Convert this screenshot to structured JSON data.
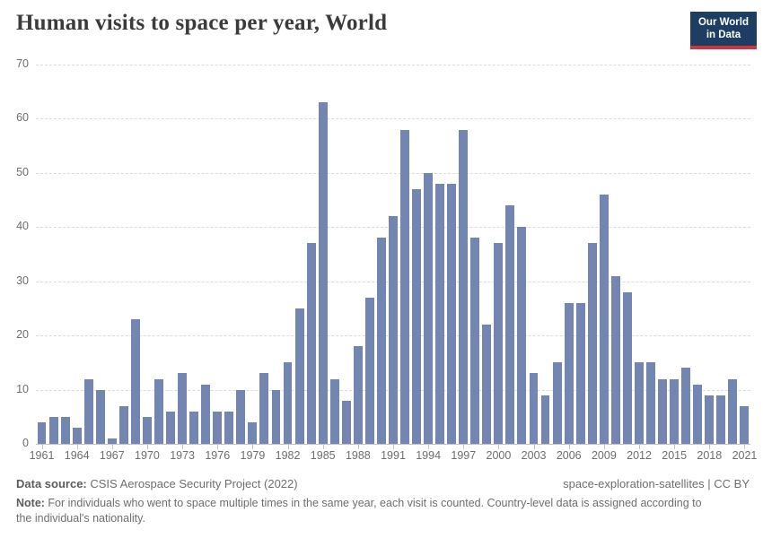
{
  "header": {
    "title": "Human visits to space per year, World",
    "logo": {
      "line1": "Our World",
      "line2": "in Data"
    }
  },
  "chart_data": {
    "type": "bar",
    "title": "Human visits to space per year, World",
    "xlabel": "",
    "ylabel": "",
    "ylim": [
      0,
      70
    ],
    "yticks": [
      0,
      10,
      20,
      30,
      40,
      50,
      60,
      70
    ],
    "grid": "horizontal-dashed",
    "legend": "none",
    "bar_color": "#7386b2",
    "x": [
      1961,
      1962,
      1963,
      1964,
      1965,
      1966,
      1967,
      1968,
      1969,
      1970,
      1971,
      1972,
      1973,
      1974,
      1975,
      1976,
      1977,
      1978,
      1979,
      1980,
      1981,
      1982,
      1983,
      1984,
      1985,
      1986,
      1987,
      1988,
      1989,
      1990,
      1991,
      1992,
      1993,
      1994,
      1995,
      1996,
      1997,
      1998,
      1999,
      2000,
      2001,
      2002,
      2003,
      2004,
      2005,
      2006,
      2007,
      2008,
      2009,
      2010,
      2011,
      2012,
      2013,
      2014,
      2015,
      2016,
      2017,
      2018,
      2019,
      2020,
      2021
    ],
    "values": [
      4,
      5,
      5,
      3,
      12,
      10,
      1,
      7,
      23,
      5,
      12,
      6,
      13,
      6,
      11,
      6,
      6,
      10,
      4,
      13,
      10,
      15,
      25,
      37,
      63,
      12,
      8,
      18,
      27,
      38,
      42,
      58,
      47,
      50,
      48,
      48,
      58,
      38,
      22,
      37,
      44,
      40,
      13,
      9,
      15,
      26,
      26,
      37,
      46,
      31,
      28,
      15,
      15,
      12,
      12,
      14,
      11,
      9,
      9,
      12,
      7
    ],
    "xtick_labels": [
      1961,
      1964,
      1967,
      1970,
      1973,
      1976,
      1979,
      1982,
      1985,
      1988,
      1991,
      1994,
      1997,
      2000,
      2003,
      2006,
      2009,
      2012,
      2015,
      2018,
      2021
    ]
  },
  "footer": {
    "source_label": "Data source:",
    "source_text": " CSIS Aerospace Security Project (2022)",
    "license_text": "space-exploration-satellites | CC BY",
    "note_label": "Note:",
    "note_text": " For individuals who went to space multiple times in the same year, each visit is counted. Country-level data is assigned according to the individual's nationality."
  },
  "colors": {
    "bar": "#7386b2",
    "gridline": "#dcdcdc",
    "axis": "#c4c4c4",
    "tick_text": "#6e6e6e",
    "title_text": "#3b3b3b",
    "logo_bg": "#1d3d63",
    "logo_accent": "#cf3540"
  }
}
